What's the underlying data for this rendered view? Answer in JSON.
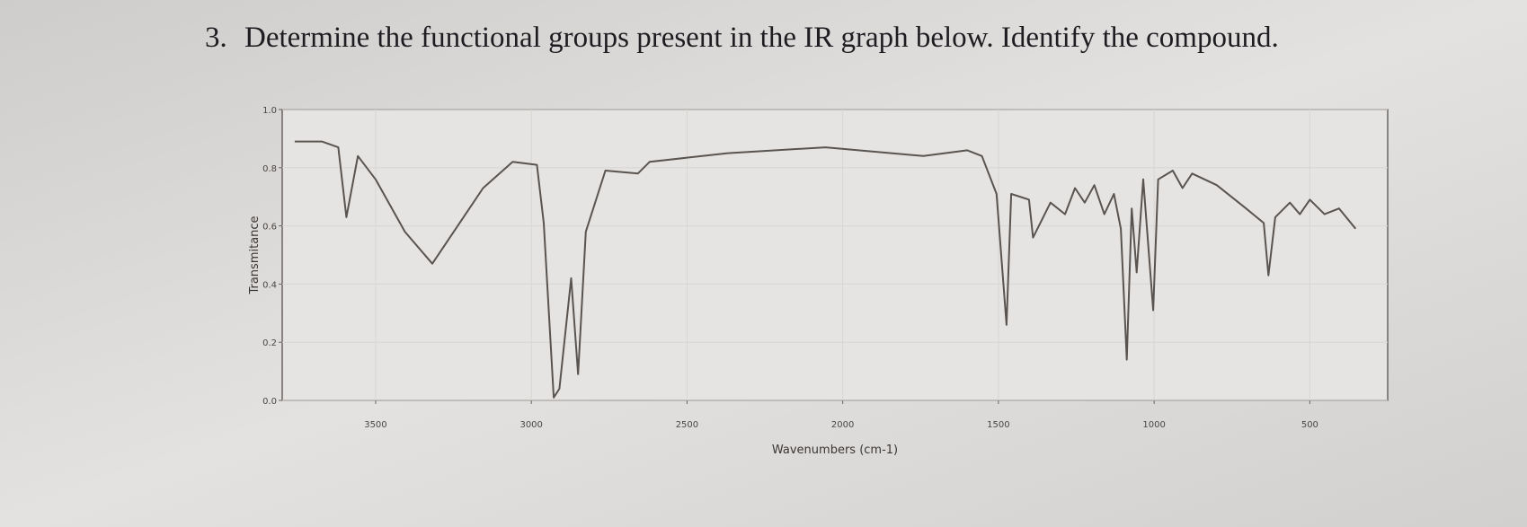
{
  "question": {
    "number": "3.",
    "text": "Determine the functional groups present in the IR graph below. Identify the compound."
  },
  "chart_data": {
    "type": "line",
    "x_label": "Wavenumbers (cm-1)",
    "y_label": "Transmitance",
    "x": [
      3760,
      3673,
      3620,
      3594,
      3557,
      3500,
      3406,
      3318,
      3249,
      3155,
      3060,
      2982,
      2960,
      2928,
      2910,
      2872,
      2850,
      2825,
      2762,
      2658,
      2620,
      2369,
      2055,
      1741,
      1600,
      1553,
      1506,
      1474,
      1459,
      1402,
      1389,
      1333,
      1286,
      1254,
      1223,
      1192,
      1160,
      1129,
      1107,
      1088,
      1072,
      1056,
      1035,
      1003,
      987,
      940,
      909,
      878,
      799,
      705,
      648,
      633,
      611,
      564,
      532,
      500,
      453,
      406,
      353
    ],
    "values": [
      0.89,
      0.89,
      0.87,
      0.63,
      0.84,
      0.76,
      0.58,
      0.47,
      0.58,
      0.73,
      0.82,
      0.81,
      0.61,
      0.01,
      0.04,
      0.42,
      0.09,
      0.58,
      0.79,
      0.78,
      0.82,
      0.85,
      0.87,
      0.84,
      0.86,
      0.84,
      0.71,
      0.26,
      0.71,
      0.69,
      0.56,
      0.68,
      0.64,
      0.73,
      0.68,
      0.74,
      0.64,
      0.71,
      0.59,
      0.14,
      0.66,
      0.44,
      0.76,
      0.31,
      0.76,
      0.79,
      0.73,
      0.78,
      0.74,
      0.66,
      0.61,
      0.43,
      0.63,
      0.68,
      0.64,
      0.69,
      0.64,
      0.66,
      0.59
    ],
    "color": "#5a5450",
    "xlim": [
      3800,
      250
    ],
    "xticks": [
      3500,
      3000,
      2500,
      2000,
      1500,
      1000,
      500
    ],
    "ylim": [
      0,
      1
    ],
    "yticks": [
      {
        "value": 0,
        "label": "0.0"
      },
      0.2,
      0.4,
      0.6,
      0.8,
      {
        "value": 1,
        "label": "1.0"
      }
    ],
    "grid": true
  }
}
